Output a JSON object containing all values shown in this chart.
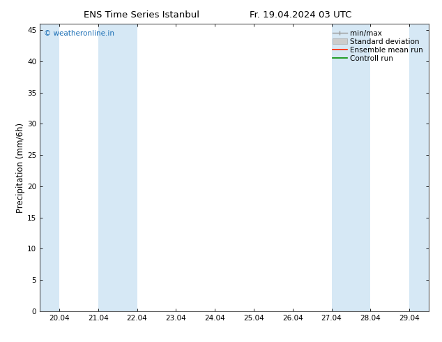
{
  "title_left": "ENS Time Series Istanbul",
  "title_right": "Fr. 19.04.2024 03 UTC",
  "ylabel": "Precipitation (mm/6h)",
  "xlim_dates": [
    "20.04",
    "21.04",
    "22.04",
    "23.04",
    "24.04",
    "25.04",
    "26.04",
    "27.04",
    "28.04",
    "29.04"
  ],
  "ylim": [
    0,
    46
  ],
  "yticks": [
    0,
    5,
    10,
    15,
    20,
    25,
    30,
    35,
    40,
    45
  ],
  "watermark_text": "© weatheronline.in",
  "watermark_color": "#1a6eb5",
  "background_color": "#ffffff",
  "plot_bg_color": "#ffffff",
  "shaded_color": "#d6e8f5",
  "shaded_bands": [
    {
      "xstart": -0.5,
      "xend": 0.0
    },
    {
      "xstart": 1.0,
      "xend": 2.0
    },
    {
      "xstart": 7.0,
      "xend": 8.0
    },
    {
      "xstart": 9.0,
      "xend": 9.5
    }
  ],
  "tick_label_fontsize": 7.5,
  "axis_label_fontsize": 8.5,
  "title_fontsize": 9.5,
  "legend_fontsize": 7.5,
  "legend_items": [
    {
      "label": "min/max",
      "color": "#aaaaaa"
    },
    {
      "label": "Standard deviation",
      "color": "#bbbbbb"
    },
    {
      "label": "Ensemble mean run",
      "color": "#ff0000"
    },
    {
      "label": "Controll run",
      "color": "#008000"
    }
  ]
}
